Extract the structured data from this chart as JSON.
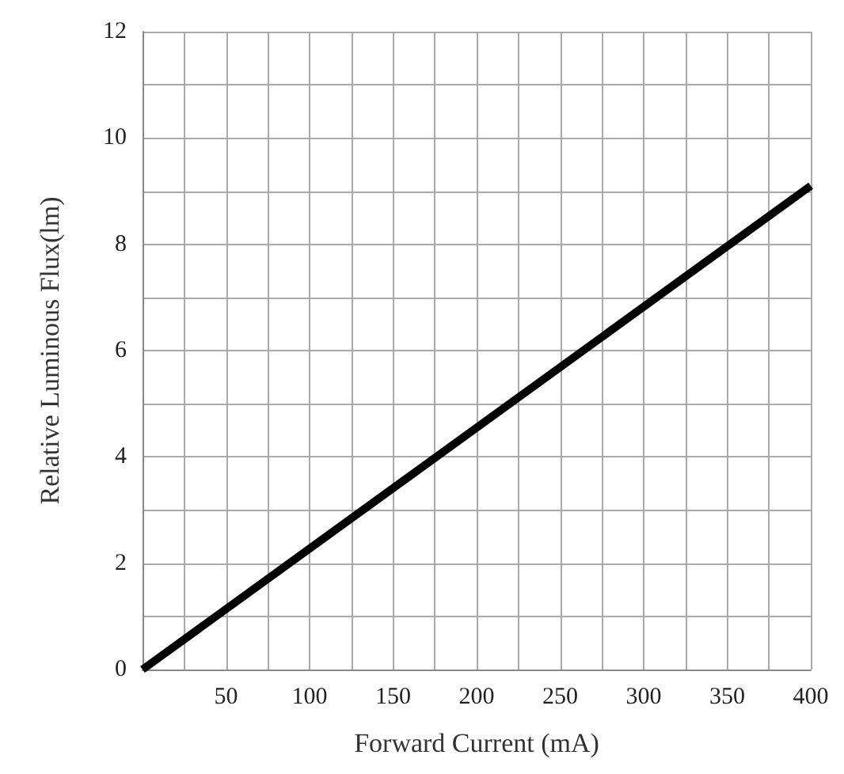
{
  "chart_data": {
    "type": "line",
    "xlabel": "Forward Current (mA)",
    "ylabel": "Relative Luminous Flux(lm)",
    "x": [
      0,
      400
    ],
    "series": [
      {
        "color": "#000000",
        "values": [
          0,
          9.1
        ]
      }
    ],
    "xlim": [
      0,
      400
    ],
    "xticks": [
      {
        "value": 0,
        "label": null
      },
      {
        "value": 25,
        "label": null
      },
      50,
      {
        "value": 75,
        "label": null
      },
      100,
      {
        "value": 125,
        "label": null
      },
      150,
      {
        "value": 175,
        "label": null
      },
      200,
      {
        "value": 225,
        "label": null
      },
      250,
      {
        "value": 275,
        "label": null
      },
      300,
      {
        "value": 325,
        "label": null
      },
      350,
      {
        "value": 375,
        "label": null
      },
      400
    ],
    "ylim": [
      0,
      12
    ],
    "yticks": [
      0,
      {
        "value": 1,
        "label": null
      },
      2,
      {
        "value": 3,
        "label": null
      },
      4,
      {
        "value": 5,
        "label": null
      },
      6,
      {
        "value": 7,
        "label": null
      },
      8,
      {
        "value": 9,
        "label": null
      },
      10,
      {
        "value": 11,
        "label": null
      },
      12
    ],
    "grid": true,
    "marker": "none",
    "line_style": "solid"
  }
}
